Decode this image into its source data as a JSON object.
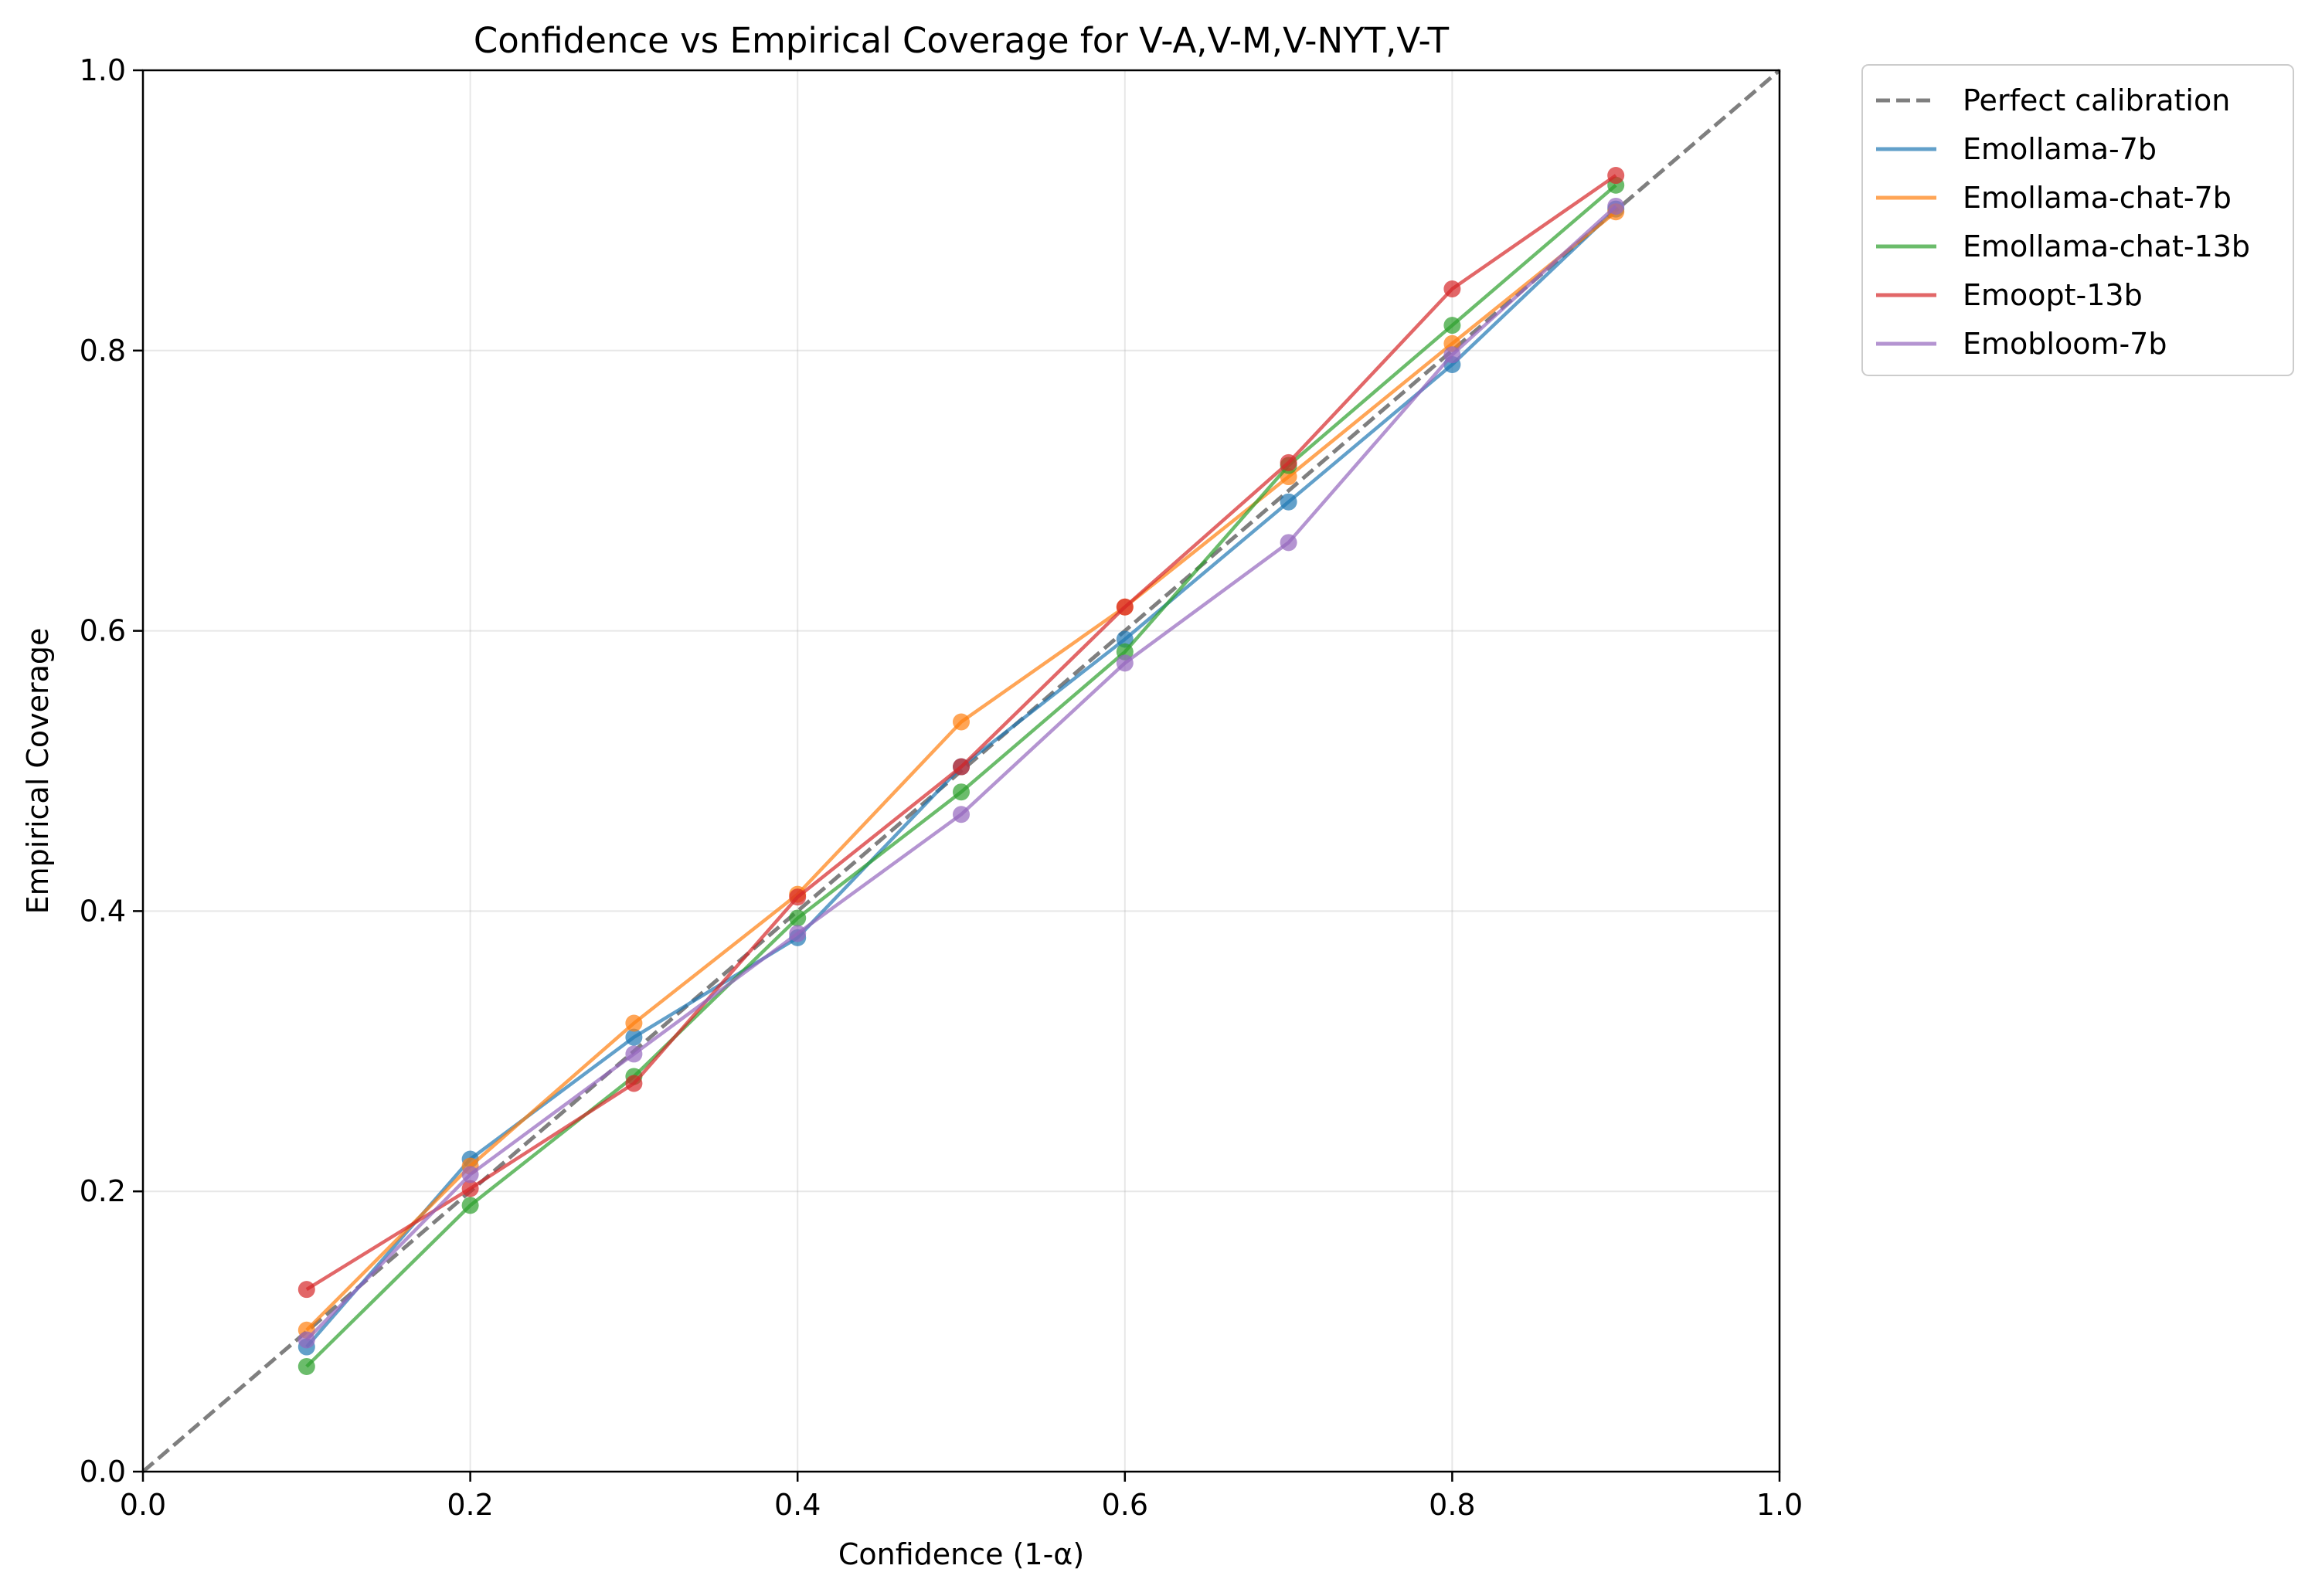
{
  "chart_data": {
    "type": "line",
    "title": "Confidence vs Empirical Coverage for V-A,V-M,V-NYT,V-T",
    "xlabel": "Confidence (1-α)",
    "ylabel": "Empirical Coverage",
    "xlim": [
      0.0,
      1.0
    ],
    "ylim": [
      0.0,
      1.0
    ],
    "grid": true,
    "legend_placement": "outside-top-right",
    "x_ticks": [
      "0.0",
      "0.2",
      "0.4",
      "0.6",
      "0.8",
      "1.0"
    ],
    "y_ticks": [
      "0.0",
      "0.2",
      "0.4",
      "0.6",
      "0.8",
      "1.0"
    ],
    "x": [
      0.1,
      0.2,
      0.3,
      0.4,
      0.5,
      0.6,
      0.7,
      0.8,
      0.9
    ],
    "reference_line": {
      "name": "Perfect calibration",
      "color": "#7f7f7f",
      "points": [
        [
          0.0,
          0.0
        ],
        [
          1.0,
          1.0
        ]
      ]
    },
    "series": [
      {
        "name": "Emollama-7b",
        "color": "#1f77b4",
        "values": [
          0.089,
          0.223,
          0.31,
          0.381,
          0.503,
          0.594,
          0.692,
          0.79,
          0.901
        ]
      },
      {
        "name": "Emollama-chat-7b",
        "color": "#ff7f0e",
        "values": [
          0.101,
          0.218,
          0.32,
          0.412,
          0.535,
          0.617,
          0.71,
          0.805,
          0.899
        ]
      },
      {
        "name": "Emollama-chat-13b",
        "color": "#2ca02c",
        "values": [
          0.075,
          0.19,
          0.282,
          0.395,
          0.485,
          0.585,
          0.718,
          0.818,
          0.918
        ]
      },
      {
        "name": "Emoopt-13b",
        "color": "#d62728",
        "values": [
          0.13,
          0.202,
          0.277,
          0.41,
          0.503,
          0.617,
          0.72,
          0.844,
          0.925
        ]
      },
      {
        "name": "Emobloom-7b",
        "color": "#9467bd",
        "values": [
          0.094,
          0.212,
          0.298,
          0.384,
          0.469,
          0.577,
          0.663,
          0.797,
          0.903
        ]
      }
    ]
  }
}
